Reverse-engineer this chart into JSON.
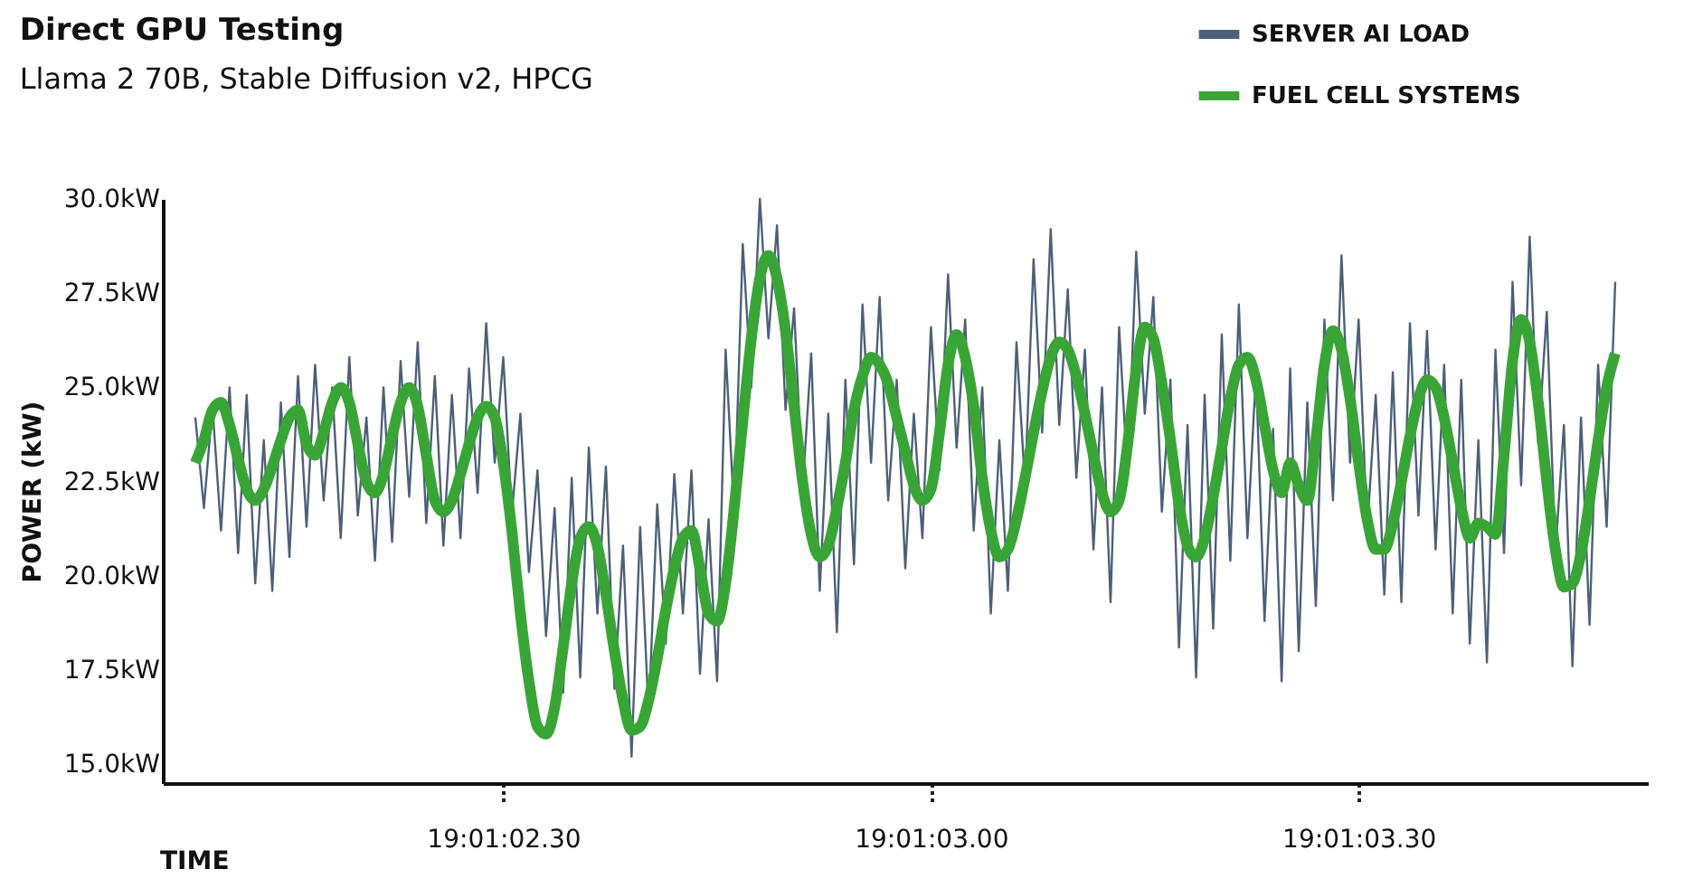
{
  "chart_data": {
    "type": "line",
    "title": "Direct GPU Testing",
    "subtitle": "Llama 2 70B, Stable Diffusion v2, HPCG",
    "xlabel": "TIME",
    "ylabel": "POWER (kW)",
    "categories": [
      null,
      null,
      null,
      null,
      null,
      null,
      null,
      null,
      null,
      null,
      null,
      null,
      null,
      null,
      null,
      null,
      null,
      null,
      null,
      null,
      null,
      null,
      null,
      null,
      null,
      null,
      null,
      null,
      null,
      null,
      null,
      null,
      null,
      null,
      null,
      null,
      "19:01:02.30",
      null,
      null,
      null,
      null,
      null,
      null,
      null,
      null,
      null,
      null,
      null,
      null,
      null,
      null,
      null,
      null,
      null,
      null,
      null,
      null,
      null,
      null,
      null,
      null,
      null,
      null,
      null,
      null,
      null,
      null,
      null,
      null,
      null,
      null,
      null,
      null,
      null,
      null,
      null,
      null,
      null,
      null,
      null,
      null,
      null,
      null,
      null,
      null,
      null,
      "19:01:03.00",
      null,
      null,
      null,
      null,
      null,
      null,
      null,
      null,
      null,
      null,
      null,
      null,
      null,
      null,
      null,
      null,
      null,
      null,
      null,
      null,
      null,
      null,
      null,
      null,
      null,
      null,
      null,
      null,
      null,
      null,
      null,
      null,
      null,
      null,
      null,
      null,
      null,
      null,
      null,
      null,
      null,
      null,
      null,
      null,
      null,
      null,
      null,
      null,
      null,
      "19:01:03.30",
      null,
      null,
      null,
      null,
      null,
      null,
      null,
      null,
      null,
      null,
      null,
      null,
      null,
      null,
      null,
      null,
      null,
      null,
      null,
      null,
      null,
      null,
      null,
      null,
      null,
      null,
      null,
      null,
      null,
      null
    ],
    "ylim": [
      14.5,
      30.0
    ],
    "yticks": [
      {
        "value": 15,
        "label": "15.0kW"
      },
      {
        "value": 17.5,
        "label": "17.5kW"
      },
      {
        "value": 20,
        "label": "20.0kW"
      },
      {
        "value": 22.5,
        "label": "22.5kW"
      },
      {
        "value": 25,
        "label": "25.0kW"
      },
      {
        "value": 27.5,
        "label": "27.5kW"
      },
      {
        "value": 30,
        "label": "30.0kW"
      }
    ],
    "grid": false,
    "legend": "top right",
    "series": [
      {
        "name": "SERVER AI LOAD",
        "color": "#4d6078",
        "values": [
          24.2,
          21.8,
          24.5,
          21.2,
          25.0,
          20.6,
          24.8,
          19.8,
          23.6,
          19.6,
          24.6,
          20.5,
          25.3,
          21.3,
          25.6,
          22.0,
          25.0,
          21.0,
          25.8,
          21.6,
          24.2,
          20.4,
          25.0,
          20.9,
          25.7,
          22.1,
          26.2,
          21.4,
          25.3,
          20.8,
          24.8,
          21.0,
          25.5,
          22.2,
          26.7,
          23.0,
          25.8,
          21.6,
          24.3,
          20.1,
          22.8,
          18.4,
          21.8,
          16.9,
          22.6,
          17.3,
          23.4,
          19.0,
          22.9,
          17.0,
          20.8,
          15.2,
          21.3,
          16.3,
          21.9,
          18.2,
          22.7,
          19.0,
          22.8,
          17.4,
          21.5,
          17.2,
          26.0,
          21.6,
          28.8,
          25.0,
          30.0,
          26.3,
          29.3,
          24.4,
          27.1,
          22.3,
          25.9,
          19.6,
          24.3,
          18.5,
          25.2,
          20.3,
          27.2,
          23.0,
          27.4,
          22.0,
          25.2,
          20.2,
          24.3,
          21.0,
          26.6,
          22.8,
          28.0,
          23.4,
          26.8,
          21.2,
          25.0,
          19.0,
          23.6,
          19.6,
          26.2,
          22.4,
          28.4,
          23.8,
          29.2,
          24.0,
          27.6,
          22.6,
          26.0,
          20.7,
          25.0,
          19.3,
          26.6,
          22.6,
          28.6,
          24.3,
          27.4,
          21.7,
          25.2,
          18.1,
          24.0,
          17.3,
          24.8,
          18.6,
          26.4,
          20.4,
          27.2,
          21.0,
          25.4,
          18.8,
          23.9,
          17.2,
          25.5,
          18.0,
          24.6,
          19.2,
          26.8,
          22.0,
          28.5,
          23.0,
          26.8,
          21.2,
          24.8,
          19.5,
          25.4,
          19.3,
          26.7,
          21.6,
          26.5,
          20.7,
          25.6,
          19.0,
          25.2,
          18.2,
          23.6,
          17.7,
          26.0,
          20.6,
          27.8,
          22.4,
          29.0,
          23.5,
          27.0,
          20.6,
          24.0,
          17.6,
          24.2,
          18.7,
          25.6,
          21.3,
          27.8
        ]
      },
      {
        "name": "FUEL CELL SYSTEMS",
        "color": "#3aa537",
        "values": [
          23.0,
          23.6,
          24.4,
          24.6,
          24.0,
          23.1,
          22.3,
          22.0,
          22.3,
          22.9,
          23.6,
          24.2,
          24.4,
          23.5,
          23.2,
          23.8,
          24.6,
          25.0,
          24.6,
          23.5,
          22.5,
          22.2,
          22.7,
          23.7,
          24.6,
          25.0,
          24.5,
          23.2,
          22.0,
          21.7,
          22.0,
          22.7,
          23.5,
          24.2,
          24.5,
          24.2,
          23.0,
          21.2,
          19.0,
          17.2,
          16.0,
          15.8,
          16.5,
          18.1,
          19.8,
          21.0,
          21.3,
          20.8,
          19.5,
          18.0,
          16.7,
          15.9,
          16.0,
          16.7,
          17.8,
          19.1,
          20.2,
          21.0,
          21.2,
          20.2,
          19.0,
          18.8,
          19.8,
          21.8,
          24.1,
          26.3,
          27.9,
          28.5,
          27.9,
          26.5,
          24.5,
          22.5,
          21.1,
          20.5,
          20.8,
          21.8,
          23.0,
          24.4,
          25.3,
          25.8,
          25.6,
          25.1,
          24.2,
          23.3,
          22.4,
          22.0,
          22.3,
          23.8,
          25.6,
          26.4,
          25.8,
          24.5,
          22.6,
          21.2,
          20.5,
          20.7,
          21.5,
          22.6,
          23.8,
          24.9,
          25.8,
          26.2,
          26.0,
          25.3,
          24.3,
          23.2,
          22.2,
          21.7,
          22.0,
          23.5,
          25.5,
          26.6,
          26.3,
          25.1,
          23.6,
          21.9,
          20.8,
          20.5,
          21.0,
          22.1,
          23.4,
          24.7,
          25.6,
          25.8,
          25.2,
          24.0,
          22.8,
          22.2,
          23.0,
          22.4,
          22.0,
          23.6,
          25.6,
          26.5,
          26.0,
          24.7,
          23.0,
          21.5,
          20.7,
          20.7,
          21.4,
          22.5,
          23.7,
          24.7,
          25.2,
          25.0,
          24.2,
          23.0,
          21.8,
          21.0,
          21.4,
          21.3,
          21.1,
          23.2,
          25.7,
          26.8,
          26.2,
          24.6,
          22.5,
          20.7,
          19.7,
          19.8,
          20.6,
          22.0,
          23.6,
          25.0,
          25.9
        ]
      }
    ]
  }
}
